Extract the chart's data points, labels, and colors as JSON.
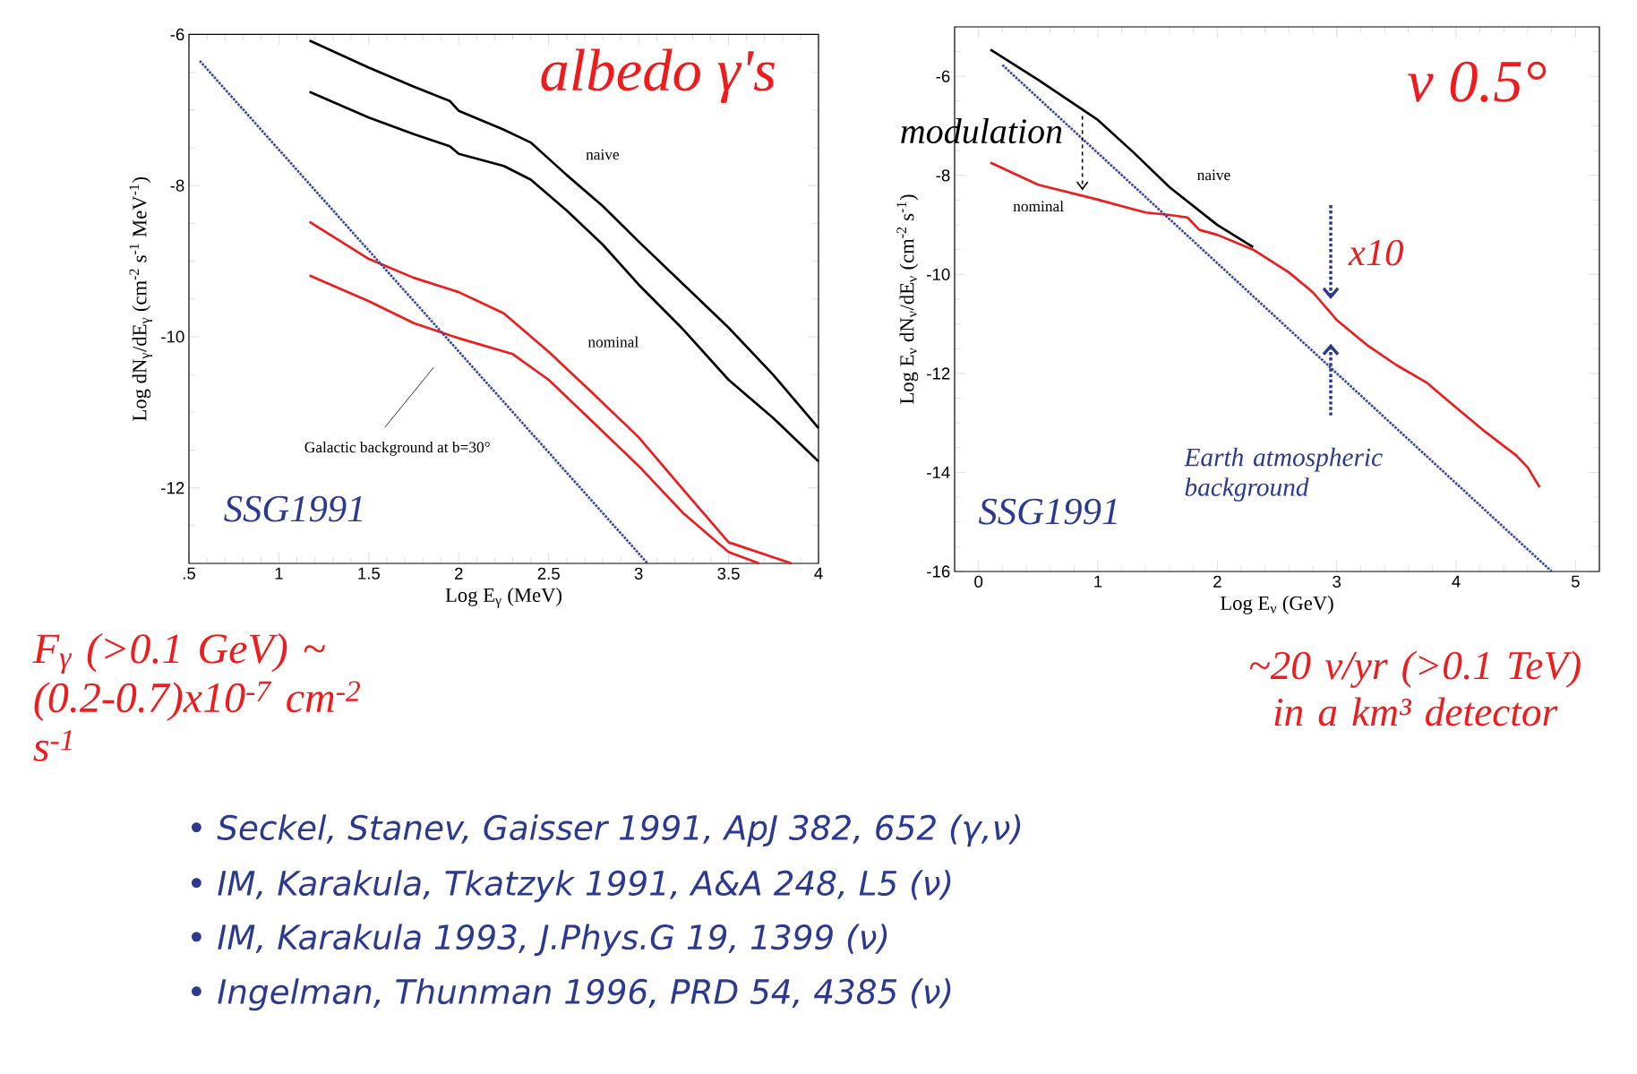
{
  "chart_data": [
    {
      "type": "line",
      "title": "albedo γ's",
      "xlabel": "Log E$_{γ}$ (MeV)",
      "ylabel": "Log dN$_{γ}$/dE$_{γ}$ (cm$^{-2}$ s$^{-1}$ MeV$^{-1}$)",
      "xlim": [
        0.5,
        4
      ],
      "ylim": [
        -13,
        -6
      ],
      "xticks": [
        {
          "value": 0.5,
          "label": ".5"
        },
        {
          "value": 0.6,
          "label": null
        },
        {
          "value": 0.7,
          "label": null
        },
        {
          "value": 0.8,
          "label": null
        },
        {
          "value": 0.9,
          "label": null
        },
        1,
        {
          "value": 1.1,
          "label": null
        },
        {
          "value": 1.2,
          "label": null
        },
        {
          "value": 1.3,
          "label": null
        },
        {
          "value": 1.4,
          "label": null
        },
        1.5,
        {
          "value": 1.6,
          "label": null
        },
        {
          "value": 1.7,
          "label": null
        },
        {
          "value": 1.8,
          "label": null
        },
        {
          "value": 1.9,
          "label": null
        },
        2,
        {
          "value": 2.1,
          "label": null
        },
        {
          "value": 2.2,
          "label": null
        },
        {
          "value": 2.3,
          "label": null
        },
        {
          "value": 2.4,
          "label": null
        },
        2.5,
        {
          "value": 2.6,
          "label": null
        },
        {
          "value": 2.7,
          "label": null
        },
        {
          "value": 2.8,
          "label": null
        },
        {
          "value": 2.9,
          "label": null
        },
        3,
        {
          "value": 3.1,
          "label": null
        },
        {
          "value": 3.2,
          "label": null
        },
        {
          "value": 3.3,
          "label": null
        },
        {
          "value": 3.4,
          "label": null
        },
        3.5,
        {
          "value": 3.6,
          "label": null
        },
        {
          "value": 3.7,
          "label": null
        },
        {
          "value": 3.8,
          "label": null
        },
        {
          "value": 3.9,
          "label": null
        },
        4
      ],
      "yticks": [
        {
          "value": -12.5,
          "label": null
        },
        -12,
        {
          "value": -11.5,
          "label": null
        },
        {
          "value": -11,
          "label": null
        },
        {
          "value": -10.5,
          "label": null
        },
        -10,
        {
          "value": -9.5,
          "label": null
        },
        {
          "value": -9,
          "label": null
        },
        {
          "value": -8.5,
          "label": null
        },
        -8,
        {
          "value": -7.5,
          "label": null
        },
        {
          "value": -7,
          "label": null
        },
        {
          "value": -6.5,
          "label": null
        },
        -6
      ],
      "series": [
        {
          "color": "#000000",
          "line_style": "solid",
          "x": [
            1.17,
            1.5,
            1.75,
            1.95,
            2.0,
            2.25,
            2.4,
            2.6,
            2.8,
            3.0,
            3.25,
            3.5,
            3.75,
            4.0
          ],
          "values": [
            -6.08,
            -6.44,
            -6.69,
            -6.88,
            -7.01,
            -7.26,
            -7.43,
            -7.86,
            -8.27,
            -8.74,
            -9.31,
            -9.88,
            -10.51,
            -11.21
          ]
        },
        {
          "color": "#000000",
          "line_style": "solid",
          "x": [
            1.17,
            1.5,
            1.75,
            1.95,
            2.0,
            2.25,
            2.4,
            2.6,
            2.8,
            3.0,
            3.25,
            3.5,
            3.75,
            4.0
          ],
          "values": [
            -6.76,
            -7.1,
            -7.32,
            -7.48,
            -7.58,
            -7.74,
            -7.92,
            -8.33,
            -8.78,
            -9.31,
            -9.91,
            -10.57,
            -11.08,
            -11.65
          ]
        },
        {
          "color": "#ee1c1c",
          "line_style": "solid",
          "x": [
            1.17,
            1.5,
            1.75,
            2.0,
            2.25,
            2.5,
            2.75,
            3.0,
            3.25,
            3.5,
            3.85
          ],
          "values": [
            -8.48,
            -8.97,
            -9.22,
            -9.41,
            -9.69,
            -10.2,
            -10.76,
            -11.33,
            -12.03,
            -12.72,
            -13.0
          ]
        },
        {
          "color": "#ee1c1c",
          "line_style": "solid",
          "x": [
            1.17,
            1.5,
            1.75,
            2.0,
            2.3,
            2.5,
            2.75,
            3.0,
            3.25,
            3.5,
            3.67
          ],
          "values": [
            -9.19,
            -9.53,
            -9.82,
            -10.02,
            -10.23,
            -10.57,
            -11.14,
            -11.71,
            -12.34,
            -12.85,
            -13.0
          ]
        },
        {
          "color": "#3a44a8",
          "line_style": "dotted",
          "x": [
            0.56,
            3.05
          ],
          "values": [
            -6.35,
            -13.0
          ]
        }
      ],
      "annotations": [
        "naive",
        "nominal",
        "Galactic background at b=30°",
        "SSG1991",
        "F$_{γ}$ (>0.1 GeV) ~ (0.2-0.7)x10$^{-7}$ cm$^{-2}$ s$^{-1}$",
        "• Seckel, Stanev, Gaisser 1991, ApJ 382, 652 (γ,ν)",
        "• IM, Karakula, Tkatzyk 1991, A&A 248, L5 (ν)",
        "• IM, Karakula 1993, J.Phys.G 19, 1399 (ν)",
        "• Ingelman, Thunman 1996, PRD 54, 4385 (ν)"
      ]
    },
    {
      "type": "line",
      "title": "ν 0.5°",
      "xlabel": "Log E$_{ν}$ (GeV)",
      "ylabel": "Log E$_{ν}$ dN$_{ν}$/dE$_{ν}$ (cm$^{-2}$ s$^{-1}$)",
      "xlim": [
        -0.2,
        5.2
      ],
      "ylim": [
        -16,
        -5
      ],
      "xticks": [
        0,
        {
          "value": 0.2,
          "label": null
        },
        {
          "value": 0.4,
          "label": null
        },
        {
          "value": 0.6,
          "label": null
        },
        {
          "value": 0.8,
          "label": null
        },
        1,
        {
          "value": 1.2,
          "label": null
        },
        {
          "value": 1.4,
          "label": null
        },
        {
          "value": 1.6,
          "label": null
        },
        {
          "value": 1.8,
          "label": null
        },
        2,
        {
          "value": 2.2,
          "label": null
        },
        {
          "value": 2.4,
          "label": null
        },
        {
          "value": 2.6,
          "label": null
        },
        {
          "value": 2.8,
          "label": null
        },
        3,
        {
          "value": 3.2,
          "label": null
        },
        {
          "value": 3.4,
          "label": null
        },
        {
          "value": 3.6,
          "label": null
        },
        {
          "value": 3.8,
          "label": null
        },
        4,
        {
          "value": 4.2,
          "label": null
        },
        {
          "value": 4.4,
          "label": null
        },
        {
          "value": 4.6,
          "label": null
        },
        {
          "value": 4.8,
          "label": null
        },
        5
      ],
      "yticks": [
        -16,
        {
          "value": -15.5,
          "label": null
        },
        {
          "value": -15,
          "label": null
        },
        {
          "value": -14.5,
          "label": null
        },
        -14,
        {
          "value": -13.5,
          "label": null
        },
        {
          "value": -13,
          "label": null
        },
        {
          "value": -12.5,
          "label": null
        },
        -12,
        {
          "value": -11.5,
          "label": null
        },
        {
          "value": -11,
          "label": null
        },
        {
          "value": -10.5,
          "label": null
        },
        -10,
        {
          "value": -9.5,
          "label": null
        },
        {
          "value": -9,
          "label": null
        },
        {
          "value": -8.5,
          "label": null
        },
        -8,
        {
          "value": -7.5,
          "label": null
        },
        {
          "value": -7,
          "label": null
        },
        {
          "value": -6.5,
          "label": null
        },
        -6,
        {
          "value": -5.5,
          "label": null
        }
      ],
      "series": [
        {
          "color": "#000000",
          "line_style": "solid",
          "x": [
            0.1,
            0.5,
            1.0,
            1.3,
            1.6,
            2.0,
            2.3
          ],
          "values": [
            -5.46,
            -6.07,
            -6.88,
            -7.54,
            -8.24,
            -9.0,
            -9.45
          ]
        },
        {
          "color": "#ee1c1c",
          "line_style": "solid",
          "x": [
            0.1,
            0.5,
            1.0,
            1.4,
            1.6,
            1.75,
            1.85,
            2.0,
            2.3,
            2.6,
            2.8,
            3.0,
            3.25,
            3.5,
            3.75,
            4.0,
            4.25,
            4.5,
            4.6,
            4.7
          ],
          "values": [
            -7.74,
            -8.19,
            -8.49,
            -8.75,
            -8.8,
            -8.85,
            -9.1,
            -9.2,
            -9.5,
            -9.96,
            -10.36,
            -10.92,
            -11.42,
            -11.83,
            -12.18,
            -12.69,
            -13.19,
            -13.65,
            -13.9,
            -14.3
          ]
        },
        {
          "color": "#3a44a8",
          "line_style": "dotted",
          "x": [
            0.2,
            4.8
          ],
          "values": [
            -5.77,
            -16.0
          ]
        }
      ],
      "annotations": [
        "naive",
        "nominal",
        {
          "text": "modulation",
          "x": 0.87,
          "y": -6.8
        },
        {
          "text": "x10",
          "x": 2.95,
          "y": -10.8
        },
        "Earth atmospheric background",
        "SSG1991",
        "~20 ν/yr (>0.1 TeV) in a km³ detector"
      ]
    }
  ]
}
